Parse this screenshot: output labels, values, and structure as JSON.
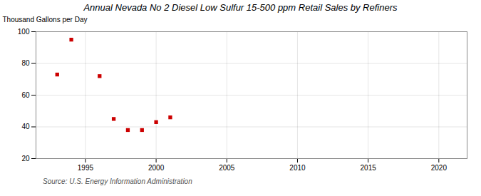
{
  "chart_data": {
    "type": "scatter",
    "title": "Annual Nevada No 2 Diesel Low Sulfur 15-500 ppm Retail Sales by Refiners",
    "ylabel": "Thousand Gallons per Day",
    "source": "Source: U.S. Energy Information Administration",
    "x": [
      1993,
      1994,
      1996,
      1997,
      1998,
      1999,
      2000,
      2001
    ],
    "values": [
      73,
      95,
      72,
      45,
      38,
      38,
      43,
      46
    ],
    "color": "#cc0000",
    "marker": "square",
    "xlim": [
      1991.5,
      2022
    ],
    "ylim": [
      20,
      100
    ],
    "xticks": [
      1995,
      2000,
      2005,
      2010,
      2015,
      2020
    ],
    "yticks": [
      20,
      40,
      60,
      80,
      100
    ],
    "grid": true
  }
}
